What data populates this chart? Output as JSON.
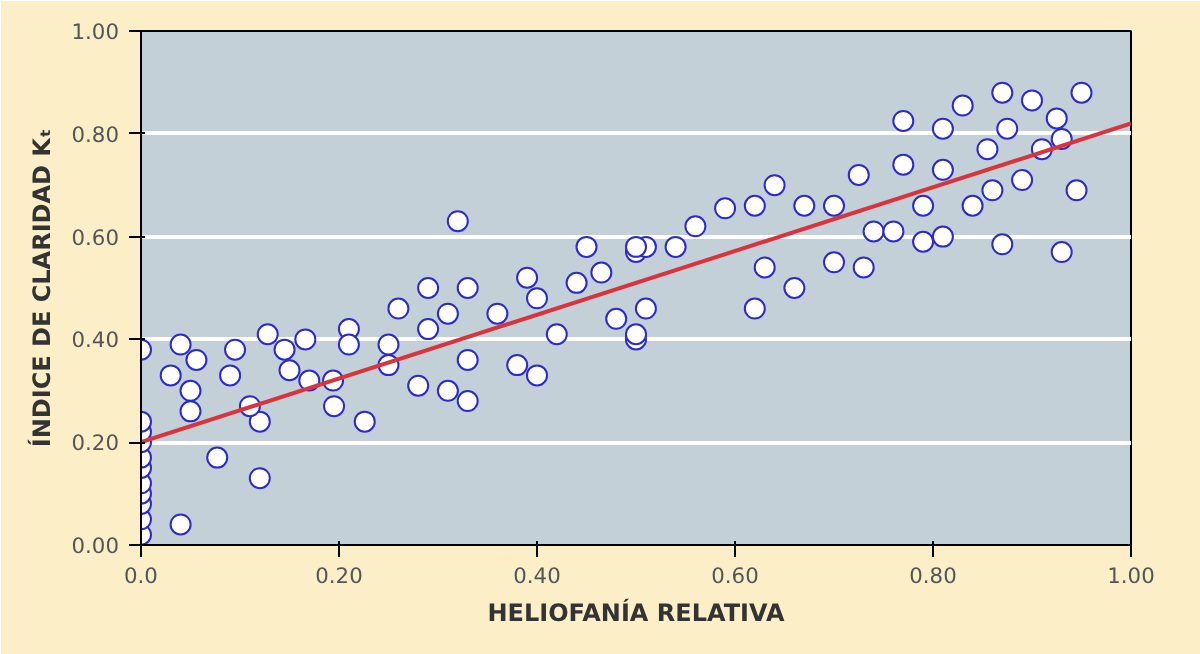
{
  "chart_data": {
    "type": "scatter",
    "xlabel": "HELIOFANÍA RELATIVA",
    "ylabel": "ÍNDICE DE CLARIDAD Kₜ",
    "xlim": [
      0,
      1
    ],
    "ylim": [
      0,
      1
    ],
    "xticks": [
      {
        "value": 0,
        "label": "0.0"
      },
      {
        "value": 0.2,
        "label": "0.20"
      },
      {
        "value": 0.4,
        "label": "0.40"
      },
      {
        "value": 0.6,
        "label": "0.60"
      },
      {
        "value": 0.8,
        "label": "0.80"
      },
      {
        "value": 1,
        "label": "1.00"
      }
    ],
    "yticks": [
      {
        "value": 0,
        "label": "0.00"
      },
      {
        "value": 0.2,
        "label": "0.20"
      },
      {
        "value": 0.4,
        "label": "0.40"
      },
      {
        "value": 0.6,
        "label": "0.60"
      },
      {
        "value": 0.8,
        "label": "0.80"
      },
      {
        "value": 1,
        "label": "1.00"
      }
    ],
    "grid": "y",
    "series": [
      {
        "marker": "circle",
        "color": "#2a2ad0",
        "x": [
          0,
          0,
          0,
          0,
          0,
          0,
          0,
          0,
          0,
          0,
          0,
          0.04,
          0.04,
          0.03,
          0.056,
          0.05,
          0.05,
          0.077,
          0.12,
          0.095,
          0.128,
          0.09,
          0.12,
          0.11,
          0.145,
          0.15,
          0.166,
          0.17,
          0.194,
          0.195,
          0.21,
          0.226,
          0.21,
          0.25,
          0.26,
          0.25,
          0.28,
          0.29,
          0.29,
          0.31,
          0.31,
          0.32,
          0.33,
          0.33,
          0.33,
          0.36,
          0.38,
          0.4,
          0.39,
          0.4,
          0.42,
          0.44,
          0.45,
          0.465,
          0.48,
          0.5,
          0.5,
          0.5,
          0.51,
          0.51,
          0.5,
          0.54,
          0.56,
          0.59,
          0.62,
          0.62,
          0.63,
          0.64,
          0.66,
          0.67,
          0.7,
          0.7,
          0.725,
          0.73,
          0.74,
          0.76,
          0.77,
          0.77,
          0.79,
          0.79,
          0.81,
          0.81,
          0.81,
          0.83,
          0.84,
          0.855,
          0.86,
          0.87,
          0.87,
          0.875,
          0.89,
          0.9,
          0.91,
          0.925,
          0.93,
          0.93,
          0.945,
          0.95
        ],
        "values": [
          0.02,
          0.05,
          0.08,
          0.1,
          0.12,
          0.15,
          0.17,
          0.2,
          0.22,
          0.24,
          0.38,
          0.04,
          0.39,
          0.33,
          0.36,
          0.3,
          0.26,
          0.17,
          0.13,
          0.38,
          0.41,
          0.33,
          0.24,
          0.27,
          0.38,
          0.34,
          0.4,
          0.32,
          0.32,
          0.27,
          0.42,
          0.24,
          0.39,
          0.39,
          0.46,
          0.35,
          0.31,
          0.5,
          0.42,
          0.45,
          0.3,
          0.63,
          0.28,
          0.5,
          0.36,
          0.45,
          0.35,
          0.33,
          0.52,
          0.48,
          0.41,
          0.51,
          0.58,
          0.53,
          0.44,
          0.57,
          0.4,
          0.41,
          0.46,
          0.58,
          0.58,
          0.58,
          0.62,
          0.655,
          0.46,
          0.66,
          0.54,
          0.7,
          0.5,
          0.66,
          0.55,
          0.66,
          0.72,
          0.54,
          0.61,
          0.61,
          0.825,
          0.74,
          0.59,
          0.66,
          0.81,
          0.73,
          0.6,
          0.855,
          0.66,
          0.77,
          0.69,
          0.88,
          0.585,
          0.81,
          0.71,
          0.865,
          0.77,
          0.83,
          0.57,
          0.79,
          0.69,
          0.88
        ]
      },
      {
        "type": "line",
        "color": "#d9343c",
        "x": [
          0,
          1
        ],
        "values": [
          0.2,
          0.82
        ]
      }
    ]
  }
}
